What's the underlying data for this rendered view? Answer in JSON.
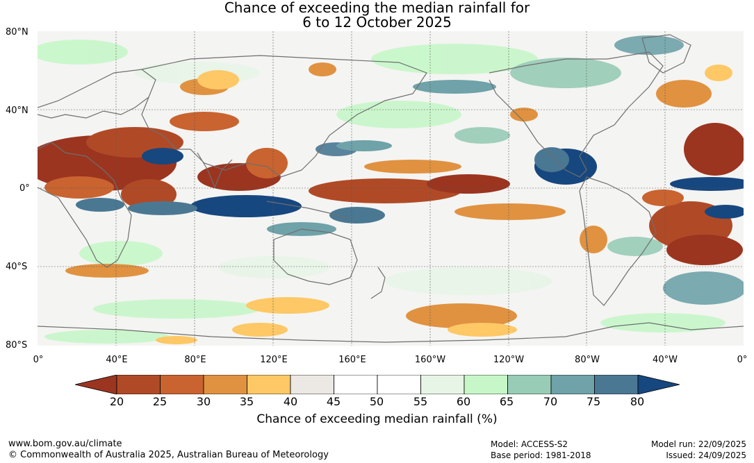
{
  "title": {
    "line1": "Chance of exceeding the median rainfall for",
    "line2": "6 to 12 October 2025"
  },
  "map": {
    "lat_labels": [
      "80°N",
      "40°N",
      "0°",
      "40°S",
      "80°S"
    ],
    "lon_labels": [
      "0°",
      "40°E",
      "80°E",
      "120°E",
      "160°E",
      "160°W",
      "120°W",
      "80°W",
      "40°W",
      "0°"
    ],
    "projection": "equirectangular",
    "gridlines": true
  },
  "legend": {
    "ticks": [
      "20",
      "25",
      "30",
      "35",
      "40",
      "45",
      "50",
      "55",
      "60",
      "65",
      "70",
      "75",
      "80"
    ],
    "colors": [
      "#9b3520",
      "#b04a26",
      "#c96330",
      "#e09240",
      "#fdc865",
      "#ece8e4",
      "#ffffff",
      "#ffffff",
      "#e7f5e7",
      "#c7f7c9",
      "#98ccb7",
      "#6fa2a9",
      "#4a7893",
      "#17477f"
    ],
    "title": "Chance of exceeding median rainfall (%)"
  },
  "footer": {
    "website": "www.bom.gov.au/climate",
    "copyright": "© Commonwealth of Australia 2025, Australian Bureau of Meteorology",
    "model": "Model: ACCESS-S2",
    "base_period": "Base period: 1981-2018",
    "model_run": "Model run: 22/09/2025",
    "issued": "Issued: 24/09/2025"
  }
}
